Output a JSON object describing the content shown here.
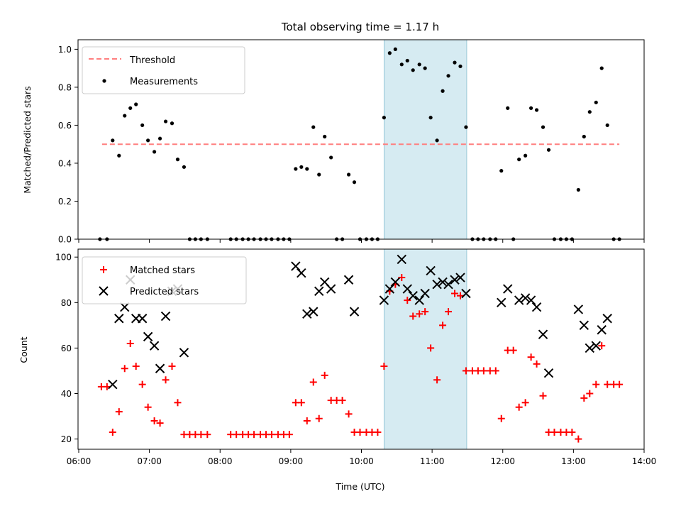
{
  "chart_data": {
    "title": "Total observing time = 1.17 h",
    "x_axis": {
      "label": "Time (UTC)",
      "ticks_hours": [
        6,
        7,
        8,
        9,
        10,
        11,
        12,
        13,
        14
      ],
      "tick_labels": [
        "06:00",
        "07:00",
        "08:00",
        "09:00",
        "10:00",
        "11:00",
        "12:00",
        "13:00",
        "14:00"
      ],
      "xlim_hours": [
        5.99,
        14.0
      ]
    },
    "highlight_span_hours": [
      10.32,
      11.49
    ],
    "highlight_color": "#add8e6",
    "panels": [
      {
        "type": "scatter",
        "ylabel": "Matched/Predicted stars",
        "ylim": [
          0,
          1.05
        ],
        "yticks": [
          0.0,
          0.2,
          0.4,
          0.6,
          0.8,
          1.0
        ],
        "ytick_labels": [
          "0.0",
          "0.2",
          "0.4",
          "0.6",
          "0.8",
          "1.0"
        ],
        "legend_position": "upper-left",
        "threshold": {
          "name": "Threshold",
          "value": 0.5,
          "x_range": [
            6.33,
            13.65
          ],
          "color": "#ff7f7f",
          "style": "dashed"
        },
        "series": [
          {
            "name": "Measurements",
            "marker": "dot",
            "color": "#000000",
            "points": [
              [
                6.3,
                0
              ],
              [
                6.4,
                0
              ],
              [
                6.48,
                0.52
              ],
              [
                6.57,
                0.44
              ],
              [
                6.65,
                0.65
              ],
              [
                6.73,
                0.69
              ],
              [
                6.81,
                0.71
              ],
              [
                6.9,
                0.6
              ],
              [
                6.98,
                0.52
              ],
              [
                7.07,
                0.46
              ],
              [
                7.15,
                0.53
              ],
              [
                7.23,
                0.62
              ],
              [
                7.32,
                0.61
              ],
              [
                7.4,
                0.42
              ],
              [
                7.49,
                0.38
              ],
              [
                7.57,
                0
              ],
              [
                7.65,
                0
              ],
              [
                7.73,
                0
              ],
              [
                7.82,
                0
              ],
              [
                8.15,
                0
              ],
              [
                8.23,
                0
              ],
              [
                8.32,
                0
              ],
              [
                8.4,
                0
              ],
              [
                8.48,
                0
              ],
              [
                8.57,
                0
              ],
              [
                8.65,
                0
              ],
              [
                8.73,
                0
              ],
              [
                8.82,
                0
              ],
              [
                8.9,
                0
              ],
              [
                8.98,
                0
              ],
              [
                9.07,
                0.37
              ],
              [
                9.15,
                0.38
              ],
              [
                9.23,
                0.37
              ],
              [
                9.32,
                0.59
              ],
              [
                9.4,
                0.34
              ],
              [
                9.48,
                0.54
              ],
              [
                9.57,
                0.43
              ],
              [
                9.65,
                0
              ],
              [
                9.73,
                0
              ],
              [
                9.82,
                0.34
              ],
              [
                9.9,
                0.3
              ],
              [
                9.98,
                0
              ],
              [
                10.07,
                0
              ],
              [
                10.15,
                0
              ],
              [
                10.23,
                0
              ],
              [
                10.32,
                0.64
              ],
              [
                10.4,
                0.98
              ],
              [
                10.48,
                1.0
              ],
              [
                10.57,
                0.92
              ],
              [
                10.65,
                0.94
              ],
              [
                10.73,
                0.89
              ],
              [
                10.82,
                0.92
              ],
              [
                10.9,
                0.9
              ],
              [
                10.98,
                0.64
              ],
              [
                11.07,
                0.52
              ],
              [
                11.15,
                0.78
              ],
              [
                11.23,
                0.86
              ],
              [
                11.32,
                0.93
              ],
              [
                11.4,
                0.91
              ],
              [
                11.48,
                0.59
              ],
              [
                11.57,
                0
              ],
              [
                11.65,
                0
              ],
              [
                11.73,
                0
              ],
              [
                11.82,
                0
              ],
              [
                11.9,
                0
              ],
              [
                11.98,
                0.36
              ],
              [
                12.07,
                0.69
              ],
              [
                12.15,
                0
              ],
              [
                12.23,
                0.42
              ],
              [
                12.32,
                0.44
              ],
              [
                12.4,
                0.69
              ],
              [
                12.48,
                0.68
              ],
              [
                12.57,
                0.59
              ],
              [
                12.65,
                0.47
              ],
              [
                12.73,
                0
              ],
              [
                12.82,
                0
              ],
              [
                12.9,
                0
              ],
              [
                12.98,
                0
              ],
              [
                13.07,
                0.26
              ],
              [
                13.15,
                0.54
              ],
              [
                13.23,
                0.67
              ],
              [
                13.32,
                0.72
              ],
              [
                13.4,
                0.9
              ],
              [
                13.48,
                0.6
              ],
              [
                13.57,
                0
              ],
              [
                13.65,
                0
              ]
            ]
          }
        ]
      },
      {
        "type": "scatter",
        "ylabel": "Count",
        "ylim": [
          15.5,
          103.5
        ],
        "yticks": [
          20,
          40,
          60,
          80,
          100
        ],
        "ytick_labels": [
          "20",
          "40",
          "60",
          "80",
          "100"
        ],
        "legend_position": "upper-left",
        "series": [
          {
            "name": "Matched stars",
            "marker": "plus",
            "color": "#ff0000",
            "points": [
              [
                6.32,
                43
              ],
              [
                6.4,
                43
              ],
              [
                6.48,
                23
              ],
              [
                6.57,
                32
              ],
              [
                6.65,
                51
              ],
              [
                6.73,
                62
              ],
              [
                6.81,
                52
              ],
              [
                6.9,
                44
              ],
              [
                6.98,
                34
              ],
              [
                7.07,
                28
              ],
              [
                7.15,
                27
              ],
              [
                7.23,
                46
              ],
              [
                7.32,
                52
              ],
              [
                7.4,
                36
              ],
              [
                7.49,
                22
              ],
              [
                7.57,
                22
              ],
              [
                7.65,
                22
              ],
              [
                7.73,
                22
              ],
              [
                7.82,
                22
              ],
              [
                8.15,
                22
              ],
              [
                8.23,
                22
              ],
              [
                8.32,
                22
              ],
              [
                8.4,
                22
              ],
              [
                8.48,
                22
              ],
              [
                8.57,
                22
              ],
              [
                8.65,
                22
              ],
              [
                8.73,
                22
              ],
              [
                8.82,
                22
              ],
              [
                8.9,
                22
              ],
              [
                8.98,
                22
              ],
              [
                9.07,
                36
              ],
              [
                9.15,
                36
              ],
              [
                9.23,
                28
              ],
              [
                9.32,
                45
              ],
              [
                9.4,
                29
              ],
              [
                9.48,
                48
              ],
              [
                9.57,
                37
              ],
              [
                9.65,
                37
              ],
              [
                9.73,
                37
              ],
              [
                9.82,
                31
              ],
              [
                9.9,
                23
              ],
              [
                9.98,
                23
              ],
              [
                10.07,
                23
              ],
              [
                10.15,
                23
              ],
              [
                10.23,
                23
              ],
              [
                10.32,
                52
              ],
              [
                10.4,
                85
              ],
              [
                10.48,
                88
              ],
              [
                10.57,
                91
              ],
              [
                10.65,
                81
              ],
              [
                10.73,
                74
              ],
              [
                10.82,
                75
              ],
              [
                10.9,
                76
              ],
              [
                10.98,
                60
              ],
              [
                11.07,
                46
              ],
              [
                11.15,
                70
              ],
              [
                11.23,
                76
              ],
              [
                11.32,
                84
              ],
              [
                11.4,
                83
              ],
              [
                11.48,
                50
              ],
              [
                11.57,
                50
              ],
              [
                11.65,
                50
              ],
              [
                11.73,
                50
              ],
              [
                11.82,
                50
              ],
              [
                11.9,
                50
              ],
              [
                11.98,
                29
              ],
              [
                12.07,
                59
              ],
              [
                12.15,
                59
              ],
              [
                12.23,
                34
              ],
              [
                12.32,
                36
              ],
              [
                12.4,
                56
              ],
              [
                12.48,
                53
              ],
              [
                12.57,
                39
              ],
              [
                12.65,
                23
              ],
              [
                12.73,
                23
              ],
              [
                12.82,
                23
              ],
              [
                12.9,
                23
              ],
              [
                12.98,
                23
              ],
              [
                13.07,
                20
              ],
              [
                13.15,
                38
              ],
              [
                13.23,
                40
              ],
              [
                13.32,
                44
              ],
              [
                13.4,
                61
              ],
              [
                13.48,
                44
              ],
              [
                13.57,
                44
              ],
              [
                13.65,
                44
              ]
            ]
          },
          {
            "name": "Predicted stars",
            "marker": "x",
            "color": "#000000",
            "points": [
              [
                6.48,
                44
              ],
              [
                6.57,
                73
              ],
              [
                6.65,
                78
              ],
              [
                6.73,
                90
              ],
              [
                6.81,
                73
              ],
              [
                6.9,
                73
              ],
              [
                6.98,
                65
              ],
              [
                7.07,
                61
              ],
              [
                7.15,
                51
              ],
              [
                7.23,
                74
              ],
              [
                7.32,
                85
              ],
              [
                7.4,
                86
              ],
              [
                7.49,
                58
              ],
              [
                9.07,
                96
              ],
              [
                9.15,
                93
              ],
              [
                9.23,
                75
              ],
              [
                9.32,
                76
              ],
              [
                9.4,
                85
              ],
              [
                9.48,
                89
              ],
              [
                9.57,
                86
              ],
              [
                9.82,
                90
              ],
              [
                9.9,
                76
              ],
              [
                10.32,
                81
              ],
              [
                10.4,
                86
              ],
              [
                10.48,
                89
              ],
              [
                10.57,
                99
              ],
              [
                10.65,
                86
              ],
              [
                10.73,
                83
              ],
              [
                10.82,
                81
              ],
              [
                10.9,
                84
              ],
              [
                10.98,
                94
              ],
              [
                11.07,
                88
              ],
              [
                11.15,
                89
              ],
              [
                11.23,
                88
              ],
              [
                11.32,
                90
              ],
              [
                11.4,
                91
              ],
              [
                11.48,
                84
              ],
              [
                11.98,
                80
              ],
              [
                12.07,
                86
              ],
              [
                12.23,
                81
              ],
              [
                12.32,
                82
              ],
              [
                12.4,
                81
              ],
              [
                12.48,
                78
              ],
              [
                12.57,
                66
              ],
              [
                12.65,
                49
              ],
              [
                13.07,
                77
              ],
              [
                13.15,
                70
              ],
              [
                13.23,
                60
              ],
              [
                13.32,
                61
              ],
              [
                13.4,
                68
              ],
              [
                13.48,
                73
              ]
            ]
          }
        ]
      }
    ]
  }
}
